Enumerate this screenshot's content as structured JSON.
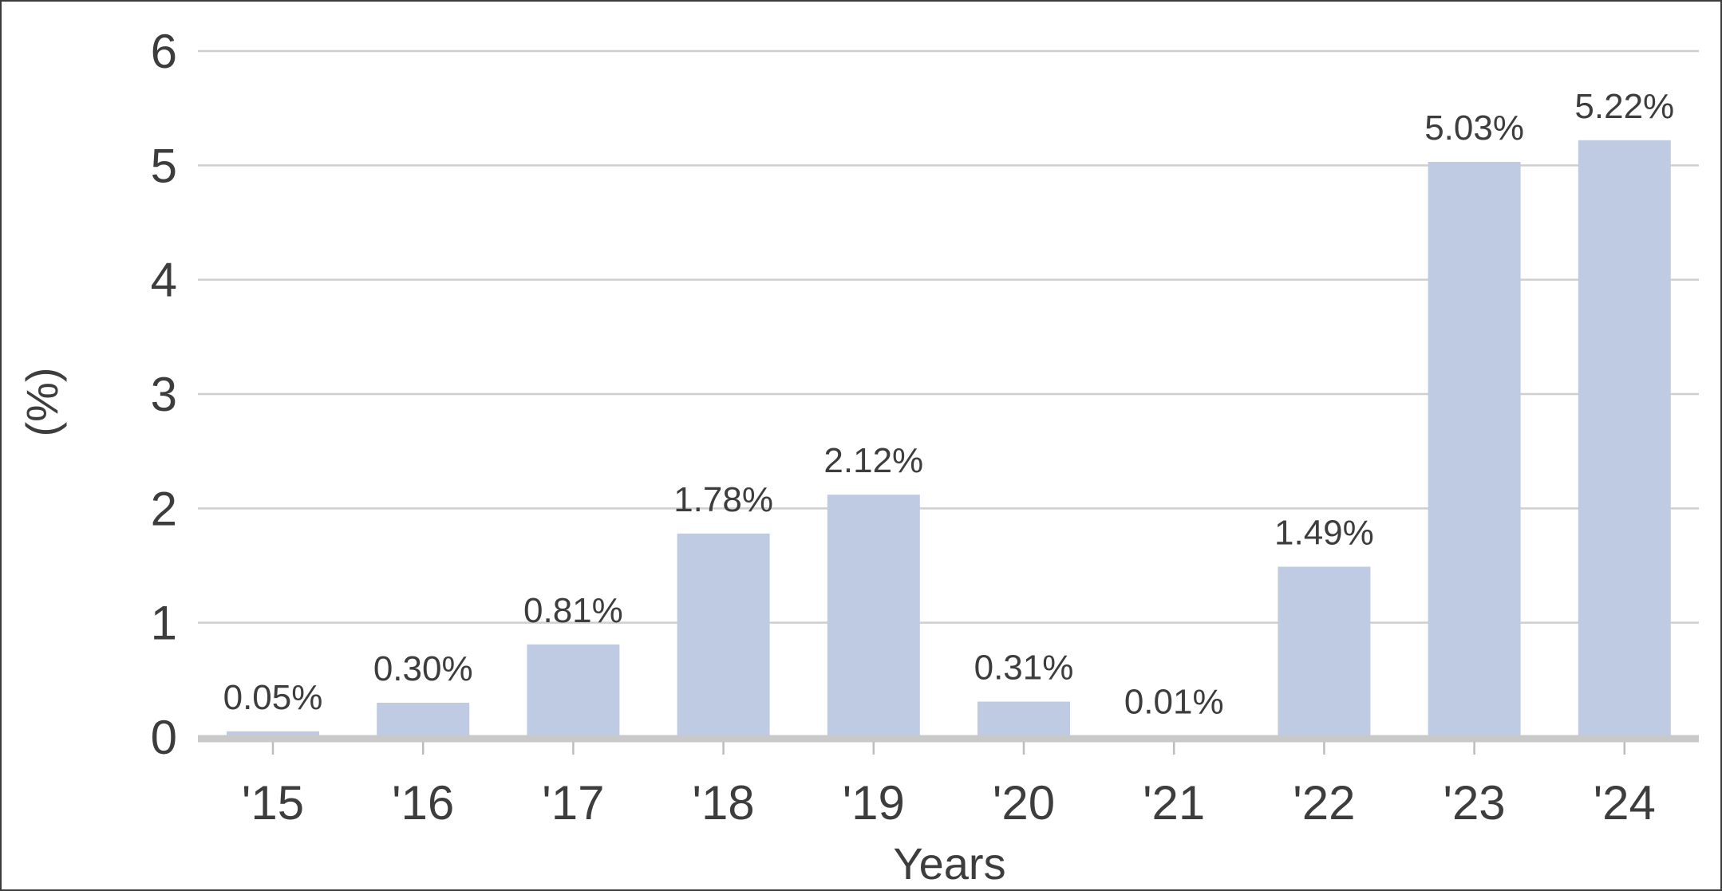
{
  "chart_data": {
    "type": "bar",
    "title": "",
    "xlabel": "Years",
    "ylabel": "(%)",
    "categories": [
      "'15",
      "'16",
      "'17",
      "'18",
      "'19",
      "'20",
      "'21",
      "'22",
      "'23",
      "'24"
    ],
    "values": [
      0.05,
      0.3,
      0.81,
      1.78,
      2.12,
      0.31,
      0.01,
      1.49,
      5.03,
      5.22
    ],
    "data_labels": [
      "0.05%",
      "0.30%",
      "0.81%",
      "1.78%",
      "2.12%",
      "0.31%",
      "0.01%",
      "1.49%",
      "5.03%",
      "5.22%"
    ],
    "y_ticks": [
      "0",
      "1",
      "2",
      "3",
      "4",
      "5",
      "6"
    ],
    "ylim": [
      0,
      6
    ],
    "grid": true,
    "legend": "none",
    "colors": {
      "bar": "#bfcbe3",
      "grid": "#cfcfcf",
      "baseline": "#c9c9c9",
      "text": "#3d3d3d",
      "frame": "#3c3c3c"
    }
  }
}
